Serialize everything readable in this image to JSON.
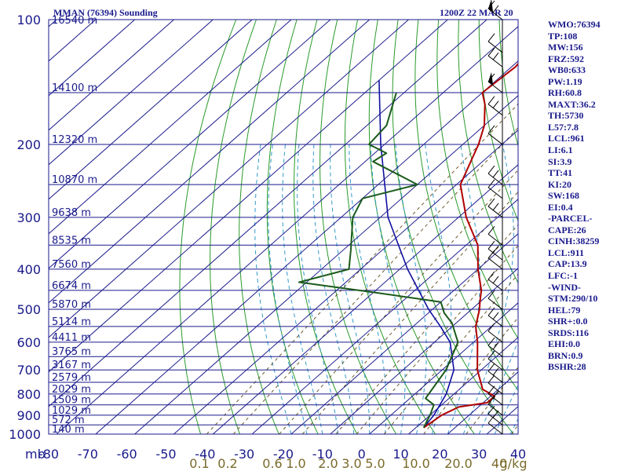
{
  "header": {
    "title": "MMAN (76394) Sounding",
    "time": "1200Z 22 MAR 20"
  },
  "stats": [
    "WMO:76394",
    "TP:108",
    "MW:156",
    "FRZ:592",
    "WB0:633",
    "PW:1.19",
    "RH:60.8",
    "MAXT:36.2",
    "TH:5730",
    "L57:7.8",
    "LCL:961",
    "LI:6.1",
    "SI:3.9",
    "TT:41",
    "KI:20",
    "SW:168",
    "EI:0.4",
    "-PARCEL-",
    "CAPE:26",
    "CINH:38259",
    "LCL:911",
    "CAP:13.9",
    "LFC:-1",
    "-WIND-",
    "STM:290/10",
    "HEL:79",
    "SHR+:0.0",
    "SRDS:116",
    "EHI:0.0",
    "BRN:0.9",
    "BSHR:28"
  ],
  "colors": {
    "grid": "#1a1a8c",
    "dry_adiabat": "#2a9a2a",
    "moist_adiabat": "#3399cc",
    "mixing_ratio": "#6b5a2a",
    "temperature": "#b00000",
    "dewpoint": "#1a5a1a",
    "parcel": "#1010a0"
  },
  "chart_data": {
    "type": "skew-t",
    "pressure_levels": [
      {
        "p": 100,
        "label": "100",
        "height": "16540 m"
      },
      {
        "p": 150,
        "label": "",
        "height": "14100 m"
      },
      {
        "p": 200,
        "label": "200",
        "height": "12320 m"
      },
      {
        "p": 250,
        "label": "",
        "height": "10870 m"
      },
      {
        "p": 300,
        "label": "300",
        "height": "9638 m"
      },
      {
        "p": 350,
        "label": "",
        "height": "8535 m"
      },
      {
        "p": 400,
        "label": "400",
        "height": "7560 m"
      },
      {
        "p": 450,
        "label": "",
        "height": "6674 m"
      },
      {
        "p": 500,
        "label": "500",
        "height": "5870 m"
      },
      {
        "p": 550,
        "label": "",
        "height": "5114 m"
      },
      {
        "p": 600,
        "label": "600",
        "height": "4411 m"
      },
      {
        "p": 650,
        "label": "",
        "height": "3765 m"
      },
      {
        "p": 700,
        "label": "700",
        "height": "3167 m"
      },
      {
        "p": 750,
        "label": "",
        "height": "2579 m"
      },
      {
        "p": 800,
        "label": "800",
        "height": "2029 m"
      },
      {
        "p": 850,
        "label": "",
        "height": "1509 m"
      },
      {
        "p": 900,
        "label": "900",
        "height": "1029 m"
      },
      {
        "p": 950,
        "label": "",
        "height": "572 m"
      },
      {
        "p": 1000,
        "label": "1000",
        "height": "140 m"
      }
    ],
    "pressure_unit": "mb",
    "temperature_ticks": [
      "-80",
      "-70",
      "-60",
      "-50",
      "-40",
      "-30",
      "-20",
      "-10",
      "0",
      "10",
      "20",
      "30",
      "40"
    ],
    "mixing_ratio_labels": [
      "0.1",
      "0.2",
      "0.6",
      "1.0",
      "2.0",
      "3.0",
      "5.0",
      "10.0",
      "20.0",
      "40",
      "g/kg"
    ],
    "skew_degC_per_decade": 120,
    "x_range_degC_at_1000": [
      -82,
      38
    ],
    "temperature": [
      {
        "p": 100,
        "t": -78
      },
      {
        "p": 108,
        "t": -74
      },
      {
        "p": 120,
        "t": -70
      },
      {
        "p": 130,
        "t": -69
      },
      {
        "p": 150,
        "t": -70
      },
      {
        "p": 160,
        "t": -66
      },
      {
        "p": 180,
        "t": -60
      },
      {
        "p": 200,
        "t": -56
      },
      {
        "p": 220,
        "t": -53
      },
      {
        "p": 250,
        "t": -49
      },
      {
        "p": 300,
        "t": -38
      },
      {
        "p": 350,
        "t": -27
      },
      {
        "p": 400,
        "t": -20
      },
      {
        "p": 450,
        "t": -13
      },
      {
        "p": 480,
        "t": -10
      },
      {
        "p": 500,
        "t": -8
      },
      {
        "p": 550,
        "t": -4
      },
      {
        "p": 600,
        "t": 1
      },
      {
        "p": 700,
        "t": 9
      },
      {
        "p": 780,
        "t": 16
      },
      {
        "p": 810,
        "t": 21
      },
      {
        "p": 840,
        "t": 21
      },
      {
        "p": 860,
        "t": 15
      },
      {
        "p": 900,
        "t": 13
      },
      {
        "p": 965,
        "t": 12
      }
    ],
    "dewpoint": [
      {
        "p": 150,
        "t": -92
      },
      {
        "p": 180,
        "t": -85
      },
      {
        "p": 200,
        "t": -84
      },
      {
        "p": 210,
        "t": -77
      },
      {
        "p": 220,
        "t": -78
      },
      {
        "p": 250,
        "t": -60
      },
      {
        "p": 270,
        "t": -70
      },
      {
        "p": 300,
        "t": -67
      },
      {
        "p": 360,
        "t": -58
      },
      {
        "p": 400,
        "t": -53
      },
      {
        "p": 430,
        "t": -62
      },
      {
        "p": 455,
        "t": -40
      },
      {
        "p": 480,
        "t": -20
      },
      {
        "p": 510,
        "t": -16
      },
      {
        "p": 540,
        "t": -11
      },
      {
        "p": 600,
        "t": -4
      },
      {
        "p": 700,
        "t": 1
      },
      {
        "p": 820,
        "t": 4
      },
      {
        "p": 850,
        "t": 8
      },
      {
        "p": 900,
        "t": 10
      },
      {
        "p": 965,
        "t": 12
      }
    ],
    "parcel": [
      {
        "p": 140,
        "t": -100
      },
      {
        "p": 200,
        "t": -81
      },
      {
        "p": 300,
        "t": -58
      },
      {
        "p": 400,
        "t": -38
      },
      {
        "p": 500,
        "t": -21
      },
      {
        "p": 550,
        "t": -13
      },
      {
        "p": 600,
        "t": -6
      },
      {
        "p": 700,
        "t": 3
      },
      {
        "p": 800,
        "t": 8
      },
      {
        "p": 900,
        "t": 11
      },
      {
        "p": 965,
        "t": 12
      }
    ],
    "wind_levels_mb": [
      100,
      120,
      130,
      150,
      170,
      200,
      250,
      270,
      300,
      350,
      380,
      400,
      450,
      500,
      550,
      600,
      650,
      700,
      750,
      800,
      850,
      900,
      950,
      1000
    ]
  }
}
